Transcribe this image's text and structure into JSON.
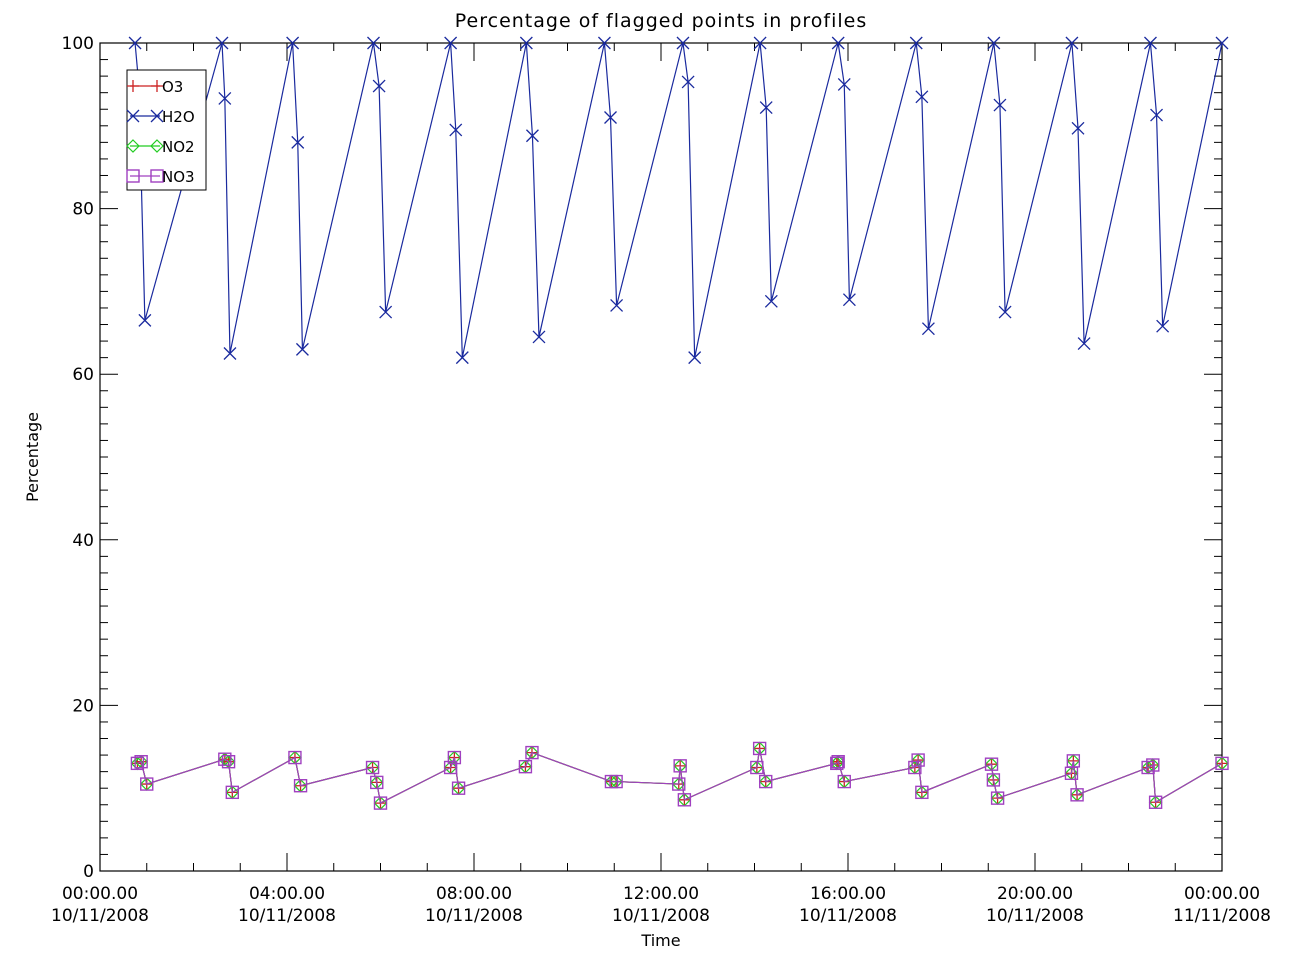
{
  "chart_data": {
    "type": "line",
    "title": "Percentage of flagged points in profiles",
    "xlabel": "Time",
    "ylabel": "Percentage",
    "ylim": [
      0,
      100
    ],
    "yticks": [
      "0",
      "20",
      "40",
      "60",
      "80",
      "100"
    ],
    "xlim_hours": [
      0,
      24
    ],
    "xticks": [
      {
        "hour": 0,
        "time": "00:00.00",
        "date": "10/11/2008"
      },
      {
        "hour": 4,
        "time": "04:00.00",
        "date": "10/11/2008"
      },
      {
        "hour": 8,
        "time": "08:00.00",
        "date": "10/11/2008"
      },
      {
        "hour": 12,
        "time": "12:00.00",
        "date": "10/11/2008"
      },
      {
        "hour": 16,
        "time": "16:00.00",
        "date": "10/11/2008"
      },
      {
        "hour": 20,
        "time": "20:00.00",
        "date": "10/11/2008"
      },
      {
        "hour": 24,
        "time": "00:00.00",
        "date": "11/11/2008"
      }
    ],
    "grid": false,
    "legend_position": "top-left",
    "series": [
      {
        "name": "O3",
        "color": "#cc2222",
        "marker": "plus",
        "x": [
          0.8,
          0.88,
          1.0,
          2.67,
          2.75,
          2.83,
          4.17,
          4.29,
          5.83,
          5.92,
          6.0,
          7.5,
          7.58,
          7.67,
          9.1,
          9.24,
          10.94,
          11.04,
          12.38,
          12.41,
          12.5,
          14.05,
          14.11,
          14.24,
          15.76,
          15.79,
          15.92,
          17.43,
          17.5,
          17.58,
          19.07,
          19.11,
          19.2,
          20.78,
          20.82,
          20.9,
          22.42,
          22.52,
          22.58,
          24.0
        ],
        "y": [
          13.0,
          13.2,
          10.5,
          13.5,
          13.2,
          9.5,
          13.7,
          10.3,
          12.5,
          10.7,
          8.2,
          12.5,
          13.7,
          10.0,
          12.6,
          14.3,
          10.8,
          10.8,
          10.5,
          12.7,
          8.6,
          12.5,
          14.8,
          10.8,
          13.0,
          13.2,
          10.8,
          12.5,
          13.4,
          9.5,
          12.9,
          11.0,
          8.8,
          11.8,
          13.3,
          9.2,
          12.5,
          12.8,
          8.3,
          13.0
        ]
      },
      {
        "name": "H2O",
        "color": "#1a2a9e",
        "marker": "x",
        "x": [
          0.75,
          0.83,
          0.96,
          2.61,
          2.67,
          2.78,
          4.12,
          4.23,
          4.33,
          5.85,
          5.97,
          6.11,
          7.5,
          7.61,
          7.75,
          9.12,
          9.25,
          9.39,
          10.79,
          10.92,
          11.05,
          12.47,
          12.58,
          12.72,
          14.12,
          14.25,
          14.36,
          15.79,
          15.92,
          16.03,
          17.46,
          17.58,
          17.72,
          19.12,
          19.25,
          19.36,
          20.79,
          20.92,
          21.05,
          22.47,
          22.6,
          22.73,
          24.0
        ],
        "y": [
          100,
          95,
          66.5,
          100,
          93.3,
          62.5,
          100,
          88.0,
          63.0,
          100,
          94.8,
          67.5,
          100,
          89.5,
          62.0,
          100,
          88.8,
          64.5,
          100,
          91.0,
          68.3,
          100,
          95.3,
          62.0,
          100,
          92.2,
          68.8,
          100,
          95.0,
          69.0,
          100,
          93.5,
          65.5,
          100,
          92.5,
          67.5,
          100,
          89.7,
          63.7,
          100,
          91.3,
          65.8,
          100
        ]
      },
      {
        "name": "NO2",
        "color": "#22cc22",
        "marker": "diamond",
        "x": [
          0.8,
          0.88,
          1.0,
          2.67,
          2.75,
          2.83,
          4.17,
          4.29,
          5.83,
          5.92,
          6.0,
          7.5,
          7.58,
          7.67,
          9.1,
          9.24,
          10.94,
          11.04,
          12.38,
          12.41,
          12.5,
          14.05,
          14.11,
          14.24,
          15.76,
          15.79,
          15.92,
          17.43,
          17.5,
          17.58,
          19.07,
          19.11,
          19.2,
          20.78,
          20.82,
          20.9,
          22.42,
          22.52,
          22.58,
          24.0
        ],
        "y": [
          13.0,
          13.2,
          10.5,
          13.5,
          13.2,
          9.5,
          13.7,
          10.3,
          12.5,
          10.7,
          8.2,
          12.5,
          13.7,
          10.0,
          12.6,
          14.3,
          10.8,
          10.8,
          10.5,
          12.7,
          8.6,
          12.5,
          14.8,
          10.8,
          13.0,
          13.2,
          10.8,
          12.5,
          13.4,
          9.5,
          12.9,
          11.0,
          8.8,
          11.8,
          13.3,
          9.2,
          12.5,
          12.8,
          8.3,
          13.0
        ]
      },
      {
        "name": "NO3",
        "color": "#a040c0",
        "marker": "square",
        "x": [
          0.8,
          0.88,
          1.0,
          2.67,
          2.75,
          2.83,
          4.17,
          4.29,
          5.83,
          5.92,
          6.0,
          7.5,
          7.58,
          7.67,
          9.1,
          9.24,
          10.94,
          11.04,
          12.38,
          12.41,
          12.5,
          14.05,
          14.11,
          14.24,
          15.76,
          15.79,
          15.92,
          17.43,
          17.5,
          17.58,
          19.07,
          19.11,
          19.2,
          20.78,
          20.82,
          20.9,
          22.42,
          22.52,
          22.58,
          24.0
        ],
        "y": [
          13.0,
          13.2,
          10.5,
          13.5,
          13.2,
          9.5,
          13.7,
          10.3,
          12.5,
          10.7,
          8.2,
          12.5,
          13.7,
          10.0,
          12.6,
          14.3,
          10.8,
          10.8,
          10.5,
          12.7,
          8.6,
          12.5,
          14.8,
          10.8,
          13.0,
          13.2,
          10.8,
          12.5,
          13.4,
          9.5,
          12.9,
          11.0,
          8.8,
          11.8,
          13.3,
          9.2,
          12.5,
          12.8,
          8.3,
          13.0
        ]
      }
    ]
  }
}
